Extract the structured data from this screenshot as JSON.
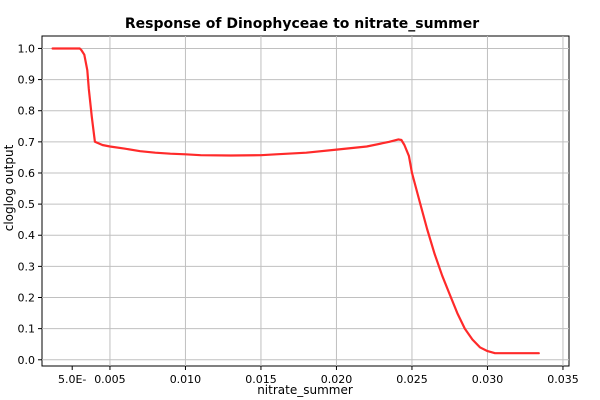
{
  "chart_data": {
    "type": "line",
    "title": "Response of Dinophyceae to nitrate_summer",
    "xlabel": "nitrate_summer",
    "ylabel": "cloglog output",
    "xlim": [
      0.0005,
      0.0354
    ],
    "ylim": [
      -0.02,
      1.04
    ],
    "x_ticks": [
      0.005,
      0.01,
      0.015,
      0.02,
      0.025,
      0.03,
      0.035
    ],
    "x_tick_labels": [
      "5.0E-",
      "0.005",
      "0.010",
      "0.015",
      "0.020",
      "0.025",
      "0.030",
      "0.035"
    ],
    "x_tick_values": [
      0.0025,
      0.005,
      0.01,
      0.015,
      0.02,
      0.025,
      0.03,
      0.035
    ],
    "y_ticks": [
      0.0,
      0.1,
      0.2,
      0.3,
      0.4,
      0.5,
      0.6,
      0.7,
      0.8,
      0.9,
      1.0
    ],
    "y_tick_labels": [
      "0.0",
      "0.1",
      "0.2",
      "0.3",
      "0.4",
      "0.5",
      "0.6",
      "0.7",
      "0.8",
      "0.9",
      "1.0"
    ],
    "grid": true,
    "series": [
      {
        "color": "#ff2a2a",
        "x": [
          0.0012,
          0.0025,
          0.003,
          0.0031,
          0.0033,
          0.0035,
          0.0036,
          0.0038,
          0.004,
          0.0045,
          0.005,
          0.006,
          0.007,
          0.008,
          0.009,
          0.01,
          0.011,
          0.013,
          0.015,
          0.016,
          0.018,
          0.02,
          0.022,
          0.0235,
          0.0241,
          0.0243,
          0.0245,
          0.0248,
          0.025,
          0.0255,
          0.026,
          0.0265,
          0.027,
          0.0275,
          0.028,
          0.0285,
          0.029,
          0.0295,
          0.03,
          0.0305,
          0.0315,
          0.0325,
          0.0334
        ],
        "y": [
          1.0,
          1.0,
          1.0,
          0.995,
          0.98,
          0.93,
          0.87,
          0.78,
          0.7,
          0.69,
          0.685,
          0.678,
          0.67,
          0.665,
          0.662,
          0.66,
          0.657,
          0.656,
          0.657,
          0.66,
          0.665,
          0.675,
          0.685,
          0.7,
          0.708,
          0.706,
          0.69,
          0.655,
          0.6,
          0.51,
          0.42,
          0.34,
          0.27,
          0.21,
          0.15,
          0.1,
          0.065,
          0.04,
          0.028,
          0.021,
          0.021,
          0.021,
          0.021
        ]
      }
    ]
  }
}
